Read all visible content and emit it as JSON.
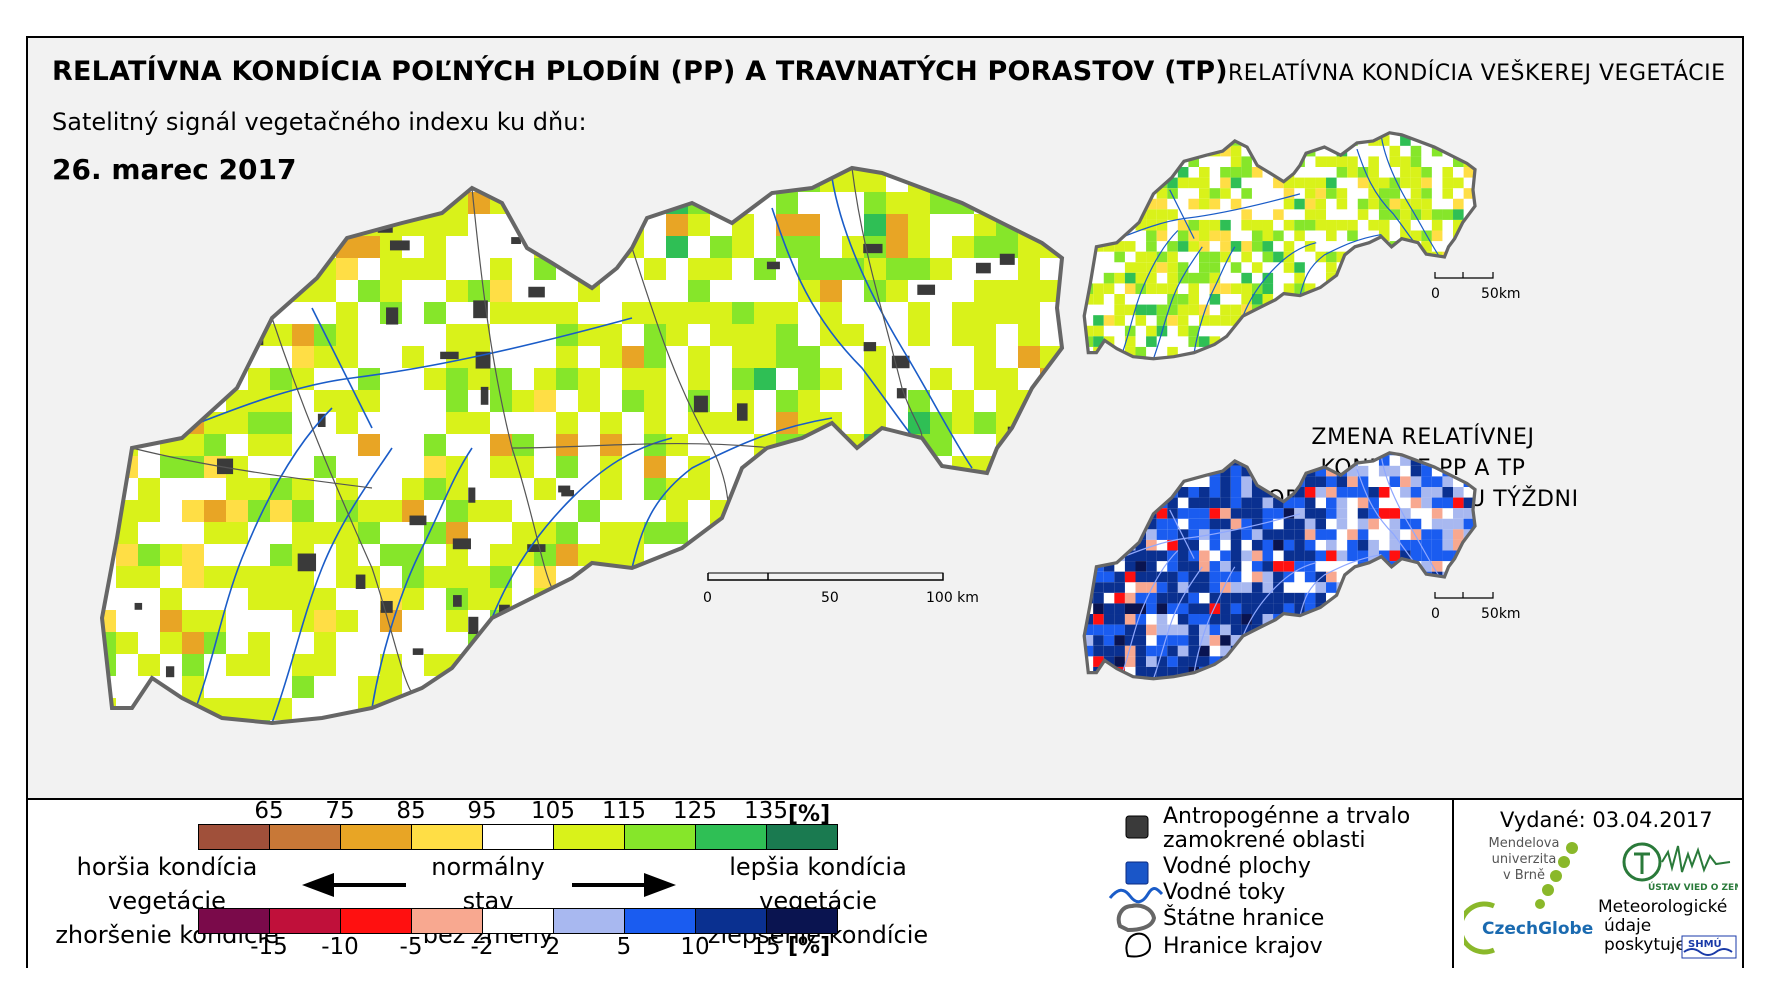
{
  "title": "RELATÍVNA KONDÍCIA POĽNÝCH PLODÍN (PP) A TRAVNATÝCH PORASTOV (TP)",
  "subtitle": "Satelitný signál vegetačného indexu ku dňu:",
  "date": "26. marec 2017",
  "right_title_1": "RELATÍVNA KONDÍCIA VEŠKEREJ VEGETÁCIE",
  "right_title_2_line1": "ZMENA RELATÍVNEJ KONDÍCIE PP A TP",
  "right_title_2_line2": "OPROTI MINULÉMU TÝŽDNI",
  "main_scale": {
    "labels": [
      "0",
      "50",
      "100 km"
    ]
  },
  "small_scale": {
    "labels": [
      "0",
      "50km"
    ]
  },
  "legend_condition": {
    "ticks": [
      "65",
      "75",
      "85",
      "95",
      "105",
      "115",
      "125",
      "135"
    ],
    "unit": "[%]",
    "colors": [
      "#a0503a",
      "#c87837",
      "#e8a525",
      "#ffde45",
      "#ffffff",
      "#d9f21a",
      "#86e62a",
      "#2fbf55",
      "#1a7a50"
    ]
  },
  "legend_change": {
    "ticks": [
      "-15",
      "-10",
      "-5",
      "-2",
      "2",
      "5",
      "10",
      "15"
    ],
    "unit": "[%]",
    "colors": [
      "#7a0a4a",
      "#c0103a",
      "#ff1010",
      "#f8a890",
      "#ffffff",
      "#a8b8f0",
      "#1a5cf0",
      "#0a3090",
      "#0a1450"
    ]
  },
  "desc": {
    "worse_1": "horšia kondícia vegetácie",
    "worse_2": "zhoršenie kondície",
    "normal_1": "normálny stav",
    "normal_2": "bez zmeny",
    "better_1": "lepšia kondícia vegetácie",
    "better_2": "zlepšenie kondície"
  },
  "legend_features": {
    "antropogenic_1": "Antropogénne a trvalo",
    "antropogenic_2": "zamokrené oblasti",
    "water_bodies": "Vodné plochy",
    "rivers": "Vodné toky",
    "state_border": "Štátne hranice",
    "region_border": "Hranice krajov"
  },
  "issued": "Vydané: 03.04.2017",
  "logos": {
    "mendel_1": "Mendelova",
    "mendel_2": "univerzita",
    "mendel_3": "v Brně",
    "czechglobe": "CzechGlobe",
    "uvgz": "ÚSTAV VIED O ZEMI",
    "meteo_1": "Meteorologické",
    "meteo_2": "údaje",
    "meteo_3": "poskytuje:",
    "shmu": "SHMÚ"
  },
  "colors": {
    "frame": "#000000",
    "map_bg": "#f2f2f2",
    "state_border": "#555555",
    "river": "#1a5cc8"
  }
}
